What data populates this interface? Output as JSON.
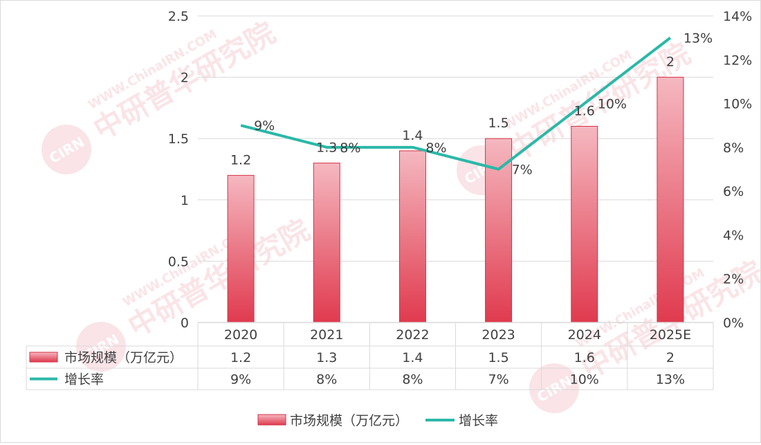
{
  "chart_data": {
    "type": "bar",
    "categories": [
      "2020",
      "2021",
      "2022",
      "2023",
      "2024",
      "2025E"
    ],
    "series": [
      {
        "name": "市场规模（万亿元）",
        "type": "bar",
        "axis": "left",
        "values": [
          1.2,
          1.3,
          1.4,
          1.5,
          1.6,
          2
        ],
        "labels": [
          "1.2",
          "1.3",
          "1.4",
          "1.5",
          "1.6",
          "2"
        ]
      },
      {
        "name": "增长率",
        "type": "line",
        "axis": "right",
        "values": [
          9,
          8,
          8,
          7,
          10,
          13
        ],
        "labels": [
          "9%",
          "8%",
          "8%",
          "7%",
          "10%",
          "13%"
        ]
      }
    ],
    "y_left": {
      "range": [
        0,
        2.5
      ],
      "ticks": [
        "0",
        "0.5",
        "1",
        "1.5",
        "2",
        "2.5"
      ]
    },
    "y_right": {
      "range": [
        0,
        14
      ],
      "ticks": [
        "0%",
        "2%",
        "4%",
        "6%",
        "8%",
        "10%",
        "12%",
        "14%"
      ]
    },
    "grid": true,
    "legend": "bottom",
    "data_table": true,
    "colors": {
      "bar_top": "#f5b8c0",
      "bar_bottom": "#e03a4e",
      "bar_edge": "#d33244",
      "line": "#2bb8a8",
      "grid": "#d9d9d9",
      "text": "#404040"
    }
  },
  "watermark": {
    "text": "中研普华研究院",
    "url": "WWW.ChinaIRN.COM",
    "logo": "CIRN"
  }
}
